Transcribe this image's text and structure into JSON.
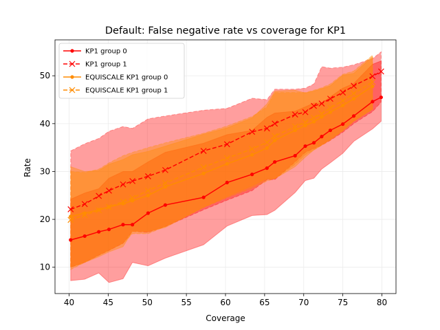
{
  "chart_data": {
    "type": "line",
    "title": "Default: False negative rate vs coverage for KP1",
    "xlabel": "Coverage",
    "ylabel": "Rate",
    "xlim": [
      38.2,
      81.8
    ],
    "ylim": [
      4.5,
      57.5
    ],
    "xticks": [
      40,
      45,
      50,
      55,
      60,
      65,
      70,
      75,
      80
    ],
    "yticks": [
      10,
      20,
      30,
      40,
      50
    ],
    "grid": true,
    "legend_position": "top-left",
    "series": [
      {
        "name": "KP1 group 0",
        "color": "#ff0000",
        "linestyle": "solid",
        "marker": "dot",
        "x": [
          40.2,
          42.0,
          43.8,
          45.1,
          46.9,
          48.1,
          50.1,
          52.3,
          57.2,
          60.2,
          63.4,
          65.3,
          66.3,
          68.9,
          70.2,
          71.3,
          72.3,
          73.4,
          75.0,
          76.4,
          78.8,
          79.9
        ],
        "y": [
          15.7,
          16.5,
          17.4,
          17.9,
          18.9,
          18.9,
          21.3,
          23.0,
          24.6,
          27.7,
          29.4,
          30.7,
          32.0,
          33.3,
          35.3,
          36.0,
          37.3,
          38.6,
          39.9,
          41.6,
          44.6,
          45.5
        ],
        "lower": [
          7.2,
          7.5,
          8.8,
          6.8,
          7.6,
          11.0,
          10.3,
          11.9,
          14.7,
          18.6,
          20.8,
          21.0,
          21.9,
          25.6,
          28.1,
          28.6,
          30.5,
          31.8,
          33.8,
          36.3,
          38.9,
          40.5
        ],
        "upper": [
          24.2,
          25.5,
          26.4,
          28.6,
          30.0,
          30.0,
          32.0,
          34.0,
          35.9,
          37.7,
          38.6,
          41.3,
          42.2,
          42.6,
          43.5,
          44.3,
          44.3,
          45.6,
          47.4,
          48.4,
          52.4,
          53.1
        ]
      },
      {
        "name": "KP1 group 1",
        "color": "#ff0000",
        "linestyle": "dashed",
        "marker": "x",
        "x": [
          40.2,
          42.0,
          43.8,
          45.1,
          46.9,
          48.1,
          50.1,
          52.3,
          57.2,
          60.2,
          63.4,
          65.3,
          66.3,
          68.9,
          70.2,
          71.3,
          72.3,
          73.4,
          75.0,
          76.4,
          78.8,
          79.9
        ],
        "y": [
          22.1,
          23.2,
          24.9,
          26.0,
          27.3,
          28.0,
          29.0,
          30.3,
          34.3,
          35.7,
          38.3,
          39.0,
          40.0,
          41.9,
          42.4,
          43.7,
          44.2,
          45.2,
          46.5,
          47.9,
          49.9,
          50.9
        ],
        "lower": [
          10.0,
          11.0,
          12.5,
          13.5,
          15.0,
          17.5,
          17.3,
          18.5,
          22.0,
          24.0,
          26.0,
          28.3,
          28.3,
          32.0,
          34.0,
          34.8,
          35.5,
          36.5,
          38.2,
          40.0,
          42.5,
          44.5
        ],
        "upper": [
          34.3,
          35.8,
          36.9,
          38.4,
          39.4,
          39.0,
          41.0,
          41.6,
          42.8,
          43.2,
          45.3,
          45.0,
          47.2,
          47.2,
          47.4,
          48.3,
          51.9,
          51.6,
          51.8,
          52.3,
          53.6,
          55.0
        ]
      },
      {
        "name": "EQUISCALE KP1 group 0",
        "color": "#ff8c00",
        "linestyle": "solid",
        "marker": "dot",
        "x": [
          40.2,
          42.0,
          43.8,
          45.1,
          46.9,
          48.1,
          50.1,
          52.3,
          57.2,
          60.2,
          63.4,
          65.3,
          66.3,
          68.9,
          70.2,
          71.3,
          72.3,
          73.4,
          75.0,
          76.4,
          78.8
        ],
        "y": [
          20.6,
          21.3,
          22.0,
          22.6,
          23.3,
          23.9,
          25.0,
          26.8,
          29.6,
          31.6,
          33.5,
          34.9,
          36.5,
          38.6,
          39.6,
          40.4,
          41.4,
          42.4,
          43.8,
          45.2,
          47.8
        ],
        "lower": [
          10.0,
          11.0,
          12.2,
          13.2,
          14.3,
          17.5,
          17.5,
          18.3,
          22.5,
          24.8,
          27.0,
          28.5,
          28.5,
          31.0,
          33.0,
          34.5,
          35.5,
          36.8,
          38.5,
          40.5,
          43.0
        ],
        "upper": [
          31.0,
          30.0,
          30.2,
          31.5,
          32.5,
          33.5,
          34.2,
          35.3,
          37.8,
          39.1,
          41.2,
          44.1,
          46.8,
          47.0,
          46.4,
          46.8,
          47.3,
          47.9,
          50.1,
          50.5,
          54.0
        ]
      },
      {
        "name": "EQUISCALE KP1 group 1",
        "color": "#ff8c00",
        "linestyle": "dashed",
        "marker": "x",
        "x": [
          40.2,
          42.0,
          43.8,
          45.1,
          46.9,
          48.1,
          50.1,
          52.3,
          57.2,
          60.2,
          63.4,
          65.3,
          66.3,
          68.9,
          70.2,
          71.3,
          72.3,
          73.4,
          75.0,
          76.4,
          78.8
        ],
        "y": [
          19.9,
          20.9,
          21.9,
          22.6,
          23.7,
          24.5,
          26.0,
          27.6,
          30.9,
          32.8,
          34.7,
          36.1,
          37.4,
          39.4,
          40.3,
          41.2,
          42.1,
          43.3,
          44.8,
          46.3,
          48.7
        ],
        "lower": [
          9.5,
          11.0,
          12.5,
          13.5,
          15.0,
          17.0,
          17.0,
          18.5,
          22.5,
          24.5,
          26.5,
          28.0,
          28.5,
          31.5,
          33.5,
          34.5,
          35.5,
          36.5,
          38.5,
          40.5,
          43.0
        ],
        "upper": [
          30.0,
          29.8,
          30.5,
          31.8,
          33.3,
          34.0,
          35.0,
          36.0,
          38.0,
          39.5,
          41.5,
          43.5,
          46.5,
          46.5,
          46.5,
          47.0,
          47.5,
          48.3,
          50.3,
          51.0,
          54.3
        ]
      }
    ]
  }
}
